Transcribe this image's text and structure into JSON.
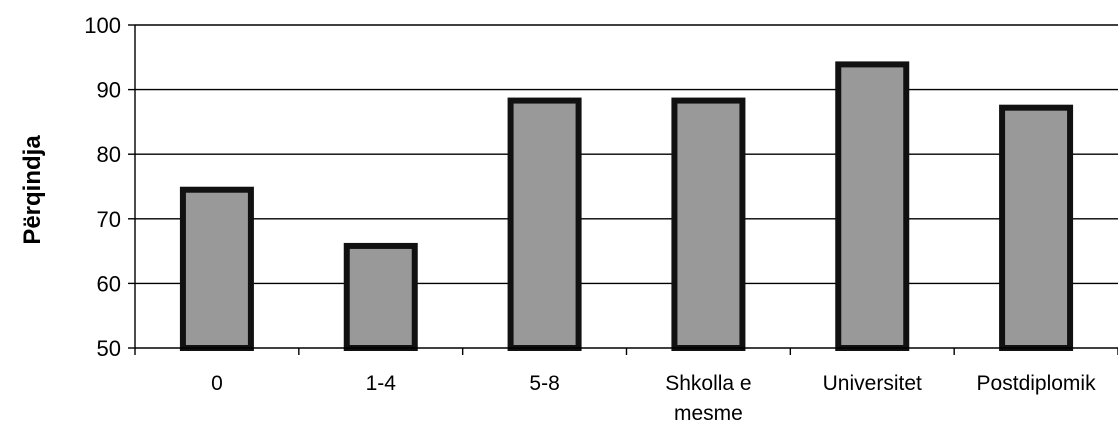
{
  "chart_data": {
    "type": "bar",
    "title": "",
    "xlabel": "",
    "ylabel": "Përqindja",
    "categories": [
      "0",
      "1-4",
      "5-8",
      "Shkolla e mesme",
      "Universitet",
      "Postdiplomik"
    ],
    "category_lines": [
      [
        "0"
      ],
      [
        "1-4"
      ],
      [
        "5-8"
      ],
      [
        "Shkolla e",
        "mesme"
      ],
      [
        "Universitet"
      ],
      [
        "Postdiplomik"
      ]
    ],
    "values": [
      74.5,
      65.8,
      88.3,
      88.3,
      93.9,
      87.2
    ],
    "ylim": [
      50,
      100
    ],
    "yticks": [
      50,
      60,
      70,
      80,
      90,
      100
    ],
    "grid": true,
    "legend": "none",
    "colors": {
      "bar_fill": "#999999",
      "bar_outline": "#111111",
      "grid": "#000000",
      "axis": "#000000"
    }
  }
}
